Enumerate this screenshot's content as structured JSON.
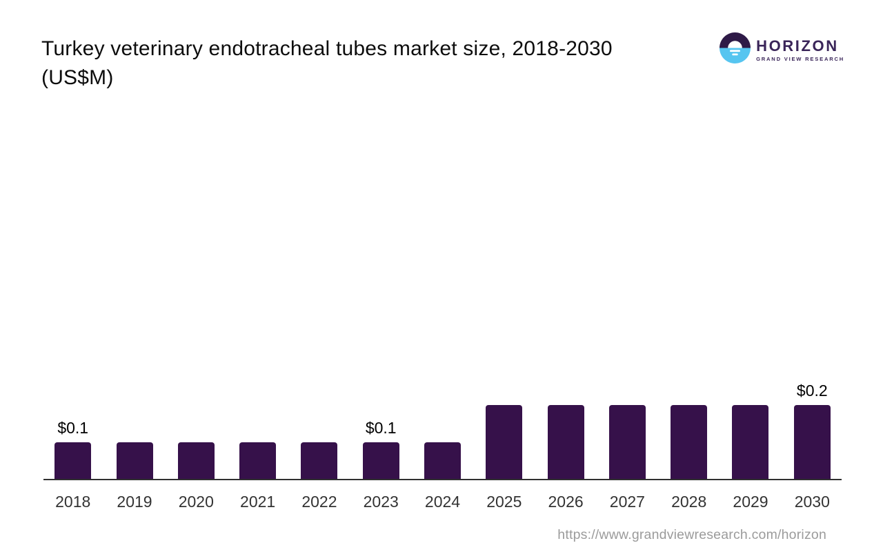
{
  "header": {
    "title_line1": "Turkey veterinary endotracheal tubes market size, 2018-2030",
    "title_line2": "(US$M)"
  },
  "logo": {
    "brand": "HORIZON",
    "subtitle": "GRAND VIEW RESEARCH",
    "icon": "horizon-sunrise-icon",
    "colors": {
      "icon_top": "#2e1a47",
      "icon_bottom": "#56c5f0",
      "text": "#3a2559"
    }
  },
  "chart_data": {
    "type": "bar",
    "title": "Turkey veterinary endotracheal tubes market size, 2018-2030 (US$M)",
    "categories": [
      "2018",
      "2019",
      "2020",
      "2021",
      "2022",
      "2023",
      "2024",
      "2025",
      "2026",
      "2027",
      "2028",
      "2029",
      "2030"
    ],
    "values": [
      0.1,
      0.1,
      0.1,
      0.1,
      0.1,
      0.1,
      0.1,
      0.2,
      0.2,
      0.2,
      0.2,
      0.2,
      0.2
    ],
    "data_labels": [
      "$0.1",
      "",
      "",
      "",
      "",
      "$0.1",
      "",
      "",
      "",
      "",
      "",
      "",
      "$0.2"
    ],
    "bar_color": "#36114a",
    "xlabel": "",
    "ylabel": "",
    "ylim": [
      0,
      0.25
    ],
    "grid": false,
    "legend": false,
    "axis_line_color": "#303030"
  },
  "footer": {
    "url": "https://www.grandviewresearch.com/horizon"
  }
}
